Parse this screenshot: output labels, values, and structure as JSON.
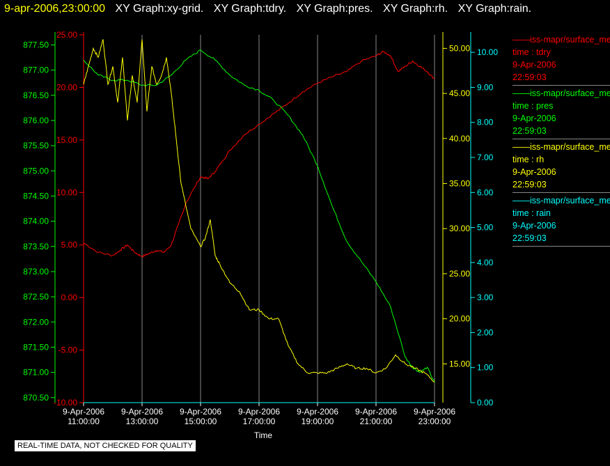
{
  "header": {
    "timestamp": "9-apr-2006,23:00:00",
    "graphs": [
      "XY Graph:xy-grid.",
      "XY Graph:tdry.",
      "XY Graph:pres.",
      "XY Graph:rh.",
      "XY Graph:rain."
    ]
  },
  "legend": [
    {
      "name": "iss-mapr/surface_met",
      "field": "time : tdry",
      "date": "9-Apr-2006",
      "time": "22:59:03",
      "color": "#ff0000"
    },
    {
      "name": "iss-mapr/surface_met",
      "field": "time : pres",
      "date": "9-Apr-2006",
      "time": "22:59:03",
      "color": "#00ff00"
    },
    {
      "name": "iss-mapr/surface_met",
      "field": "time : rh",
      "date": "9-Apr-2006",
      "time": "22:59:03",
      "color": "#ffff00"
    },
    {
      "name": "iss-mapr/surface_met",
      "field": "time : rain",
      "date": "9-Apr-2006",
      "time": "22:59:03",
      "color": "#00ffff"
    }
  ],
  "notice": "REAL-TIME DATA, NOT CHECKED FOR QUALITY",
  "chart_data": {
    "type": "line",
    "xlabel": "Time",
    "x_ticks": [
      {
        "date": "9-Apr-2006",
        "time": "11:00:00"
      },
      {
        "date": "9-Apr-2006",
        "time": "13:00:00"
      },
      {
        "date": "9-Apr-2006",
        "time": "15:00:00"
      },
      {
        "date": "9-Apr-2006",
        "time": "17:00:00"
      },
      {
        "date": "9-Apr-2006",
        "time": "19:00:00"
      },
      {
        "date": "9-Apr-2006",
        "time": "21:00:00"
      },
      {
        "date": "9-Apr-2006",
        "time": "23:00:00"
      }
    ],
    "xlim": [
      "9-Apr-2006 11:00:00",
      "9-Apr-2006 23:00:00"
    ],
    "grid": "vertical",
    "axes": [
      {
        "id": "pres",
        "color": "#00ff00",
        "ylim": [
          870.4,
          877.7
        ],
        "ticks": [
          "877.50",
          "877.00",
          "876.50",
          "876.00",
          "875.50",
          "875.00",
          "874.50",
          "874.00",
          "873.50",
          "873.00",
          "872.50",
          "872.00",
          "871.50",
          "871.00",
          "870.50"
        ]
      },
      {
        "id": "tdry",
        "color": "#ff0000",
        "ylim": [
          -10,
          25
        ],
        "ticks": [
          "25.00",
          "20.00",
          "15.00",
          "10.00",
          "5.00",
          "0.00",
          "-5.00",
          "-10.00"
        ]
      },
      {
        "id": "rh",
        "color": "#ffff00",
        "ylim": [
          10.7,
          51.5
        ],
        "ticks": [
          "50.00",
          "45.00",
          "40.00",
          "35.00",
          "30.00",
          "25.00",
          "20.00",
          "15.00"
        ]
      },
      {
        "id": "rain",
        "color": "#00ffff",
        "ylim": [
          0,
          10.5
        ],
        "ticks": [
          "10.00",
          "9.00",
          "8.00",
          "7.00",
          "6.00",
          "5.00",
          "4.00",
          "3.00",
          "2.00",
          "1.00",
          "0.00"
        ]
      }
    ],
    "series": [
      {
        "name": "tdry",
        "axis": "tdry",
        "color": "#ff0000",
        "x": [
          "11:00",
          "11:30",
          "12:00",
          "12:15",
          "12:30",
          "12:45",
          "13:00",
          "13:15",
          "13:30",
          "13:45",
          "14:00",
          "14:15",
          "14:30",
          "15:00",
          "15:15",
          "15:30",
          "15:45",
          "16:00",
          "16:30",
          "17:00",
          "17:30",
          "18:00",
          "18:30",
          "19:00",
          "19:30",
          "20:00",
          "20:30",
          "21:00",
          "21:15",
          "21:30",
          "21:45",
          "22:00",
          "22:15",
          "22:30",
          "22:45",
          "23:00"
        ],
        "y": [
          5.2,
          4.3,
          4.0,
          4.5,
          5.0,
          4.3,
          3.9,
          4.2,
          4.5,
          4.3,
          5.0,
          7.0,
          9.0,
          11.5,
          11.3,
          12.0,
          13.0,
          14.0,
          15.5,
          16.5,
          17.5,
          18.5,
          19.6,
          20.4,
          21.0,
          21.5,
          22.5,
          23.0,
          23.4,
          23.0,
          21.5,
          22.0,
          22.5,
          22.0,
          21.5,
          20.8
        ]
      },
      {
        "name": "pres",
        "axis": "pres",
        "color": "#00ff00",
        "x": [
          "11:00",
          "11:30",
          "12:00",
          "12:30",
          "13:00",
          "13:30",
          "14:00",
          "14:30",
          "15:00",
          "15:30",
          "16:00",
          "16:30",
          "17:00",
          "17:30",
          "18:00",
          "18:30",
          "19:00",
          "19:30",
          "20:00",
          "20:30",
          "21:00",
          "21:30",
          "22:00",
          "22:15",
          "22:30",
          "22:45",
          "23:00"
        ],
        "y": [
          877.2,
          876.9,
          876.8,
          876.8,
          876.7,
          876.7,
          876.9,
          877.2,
          877.4,
          877.2,
          876.9,
          876.7,
          876.6,
          876.4,
          876.1,
          875.7,
          875.1,
          874.3,
          873.6,
          873.2,
          872.8,
          872.3,
          871.3,
          871.1,
          871.0,
          871.1,
          870.8
        ]
      },
      {
        "name": "rh",
        "axis": "rh",
        "color": "#ffff00",
        "x": [
          "11:00",
          "11:10",
          "11:20",
          "11:30",
          "11:40",
          "11:50",
          "12:00",
          "12:10",
          "12:20",
          "12:30",
          "12:40",
          "12:50",
          "13:00",
          "13:10",
          "13:20",
          "13:30",
          "13:40",
          "13:50",
          "14:00",
          "14:10",
          "14:20",
          "14:40",
          "15:00",
          "15:10",
          "15:20",
          "15:30",
          "15:40",
          "16:00",
          "16:20",
          "16:40",
          "17:00",
          "17:20",
          "17:40",
          "18:00",
          "18:20",
          "18:40",
          "19:00",
          "19:20",
          "19:40",
          "20:00",
          "20:20",
          "20:40",
          "21:00",
          "21:20",
          "21:40",
          "22:00",
          "22:20",
          "22:40",
          "23:00"
        ],
        "y": [
          46,
          48,
          50,
          49,
          51,
          46,
          48,
          44,
          49,
          42,
          47,
          44,
          51,
          43,
          48,
          46,
          47,
          49,
          45,
          40,
          35,
          30,
          28,
          29,
          31,
          27,
          26,
          24,
          23,
          21,
          21,
          20,
          20,
          17,
          15,
          14,
          14,
          14,
          14.5,
          15,
          14.5,
          14.5,
          14,
          14.5,
          16,
          15,
          14.5,
          14,
          13
        ]
      },
      {
        "name": "rain",
        "axis": "rain",
        "color": "#00ffff",
        "x": [
          "11:00",
          "23:00"
        ],
        "y": [
          0.0,
          0.0
        ]
      }
    ]
  }
}
